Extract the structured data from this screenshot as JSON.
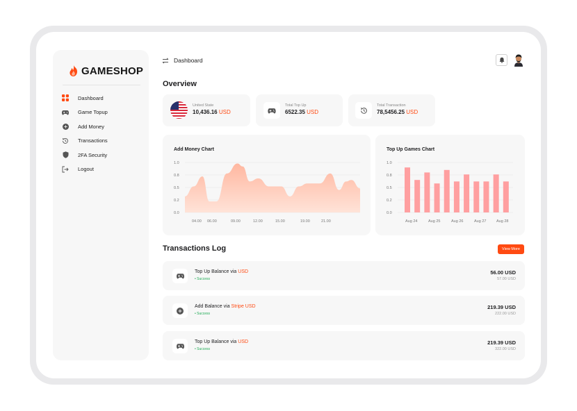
{
  "app": {
    "logo_text": "GAMESHOP"
  },
  "colors": {
    "accent": "#ff4a12",
    "success": "#1faa54",
    "chart_area": "#ffb7a0",
    "chart_bars": "#ff9fa0"
  },
  "sidebar": {
    "items": [
      {
        "label": "Dashboard",
        "icon": "grid-icon"
      },
      {
        "label": "Game Topup",
        "icon": "gamepad-icon"
      },
      {
        "label": "Add Money",
        "icon": "plus-circle-icon"
      },
      {
        "label": "Transactions",
        "icon": "history-icon"
      },
      {
        "label": "2FA Security",
        "icon": "shield-icon"
      },
      {
        "label": "Logout",
        "icon": "logout-icon"
      }
    ]
  },
  "header": {
    "title": "Dashboard",
    "swap_icon": "swap-icon",
    "bell_icon": "bell-icon",
    "avatar_icon": "avatar-icon"
  },
  "overview": {
    "title": "Overview",
    "cards": [
      {
        "label": "United State",
        "value": "10,436.16",
        "currency": "USD",
        "icon": "us-flag-icon"
      },
      {
        "label": "Total Top Up",
        "value": "6522.35",
        "currency": "USD",
        "icon": "gamepad-icon"
      },
      {
        "label": "Total Transaction",
        "value": "78,5456.25",
        "currency": "USD",
        "icon": "history-icon"
      }
    ]
  },
  "charts": {
    "add_money_title": "Add Money Chart",
    "top_up_title": "Top Up Games Chart"
  },
  "chart_data": [
    {
      "type": "area",
      "title": "Add Money Chart",
      "x_tick_labels": [
        "04.00",
        "06.00",
        "09.00",
        "12.00",
        "15.00",
        "19.00",
        "21.00"
      ],
      "y_tick_labels": [
        "0.0",
        "0.2",
        "0.5",
        "0.8",
        "1.0"
      ],
      "ylim": [
        0,
        1
      ],
      "grid": true,
      "series": [
        {
          "x": [
            0,
            0.05,
            0.1,
            0.14,
            0.18,
            0.24,
            0.3,
            0.33,
            0.37,
            0.42,
            0.48,
            0.55,
            0.6,
            0.65,
            0.7,
            0.77,
            0.83,
            0.88,
            0.92,
            0.95,
            1.0
          ],
          "y": [
            0.32,
            0.52,
            0.72,
            0.22,
            0.22,
            0.78,
            0.98,
            0.92,
            0.62,
            0.68,
            0.52,
            0.52,
            0.32,
            0.52,
            0.58,
            0.58,
            0.78,
            0.45,
            0.62,
            0.65,
            0.48
          ]
        }
      ]
    },
    {
      "type": "bar",
      "title": "Top Up Games Chart",
      "x_tick_labels": [
        "Aug 24",
        "Aug 25",
        "Aug 26",
        "Aug 27",
        "Aug 28"
      ],
      "y_tick_labels": [
        "0.0",
        "0.2",
        "0.5",
        "0.8",
        "1.0"
      ],
      "ylim": [
        0,
        1
      ],
      "grid": true,
      "values": [
        0.9,
        0.65,
        0.8,
        0.58,
        0.85,
        0.62,
        0.76,
        0.62,
        0.62,
        0.76,
        0.62
      ]
    }
  ],
  "transactions": {
    "title": "Transactions Log",
    "view_more": "View More",
    "rows": [
      {
        "text": "Top Up Balance via",
        "highlight": "USD",
        "status": "• Success",
        "amount": "56.00 USD",
        "sub": "57.00 USD",
        "icon": "gamepad-icon"
      },
      {
        "text": "Add Balance via",
        "highlight": "Stripe USD",
        "status": "• Success",
        "amount": "219.39 USD",
        "sub": "222.00 USD",
        "icon": "plus-circle-icon"
      },
      {
        "text": "Top Up Balance via",
        "highlight": "USD",
        "status": "• Success",
        "amount": "219.39 USD",
        "sub": "322.00 USD",
        "icon": "gamepad-icon"
      }
    ]
  }
}
